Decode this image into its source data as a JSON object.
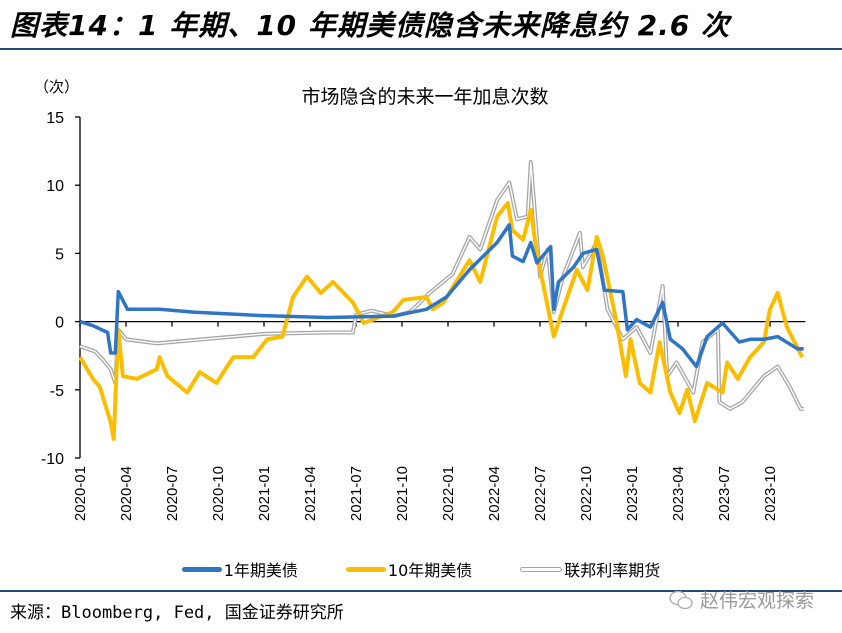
{
  "header": {
    "title": "图表14：1 年期、10 年期美债隐含未来降息约 2.6 次"
  },
  "footer": {
    "source": "来源：Bloomberg, Fed, 国金证券研究所",
    "watermark": "赵伟宏观探索"
  },
  "colors": {
    "rule": "#1f4e79",
    "blue": "#2e75c5",
    "yellow": "#fbbd00",
    "gray": "#a6a6a6"
  },
  "chart_data": {
    "type": "line",
    "title": "市场隐含的未来一年加息次数",
    "ylabel": "（次）",
    "xlabel": "",
    "ylim": [
      -10,
      15
    ],
    "yticks": [
      "15",
      "10",
      "5",
      "0",
      "-5",
      "-10"
    ],
    "ytick_values": [
      15,
      10,
      5,
      0,
      -5,
      -10
    ],
    "x_unit": "months since 2020-01",
    "xticks": [
      "2020-01",
      "2020-04",
      "2020-07",
      "2020-10",
      "2021-01",
      "2021-04",
      "2021-07",
      "2021-10",
      "2022-01",
      "2022-04",
      "2022-07",
      "2022-10",
      "2023-01",
      "2023-04",
      "2023-07",
      "2023-10"
    ],
    "legend_position": "bottom",
    "series": [
      {
        "name": "1年期美债",
        "color": "#2e75c5",
        "x": [
          0,
          0.85,
          1.8,
          2,
          2.3,
          2.5,
          3.1,
          5.2,
          7.4,
          11.7,
          16.1,
          20.4,
          22.6,
          23.9,
          25.4,
          27.2,
          28,
          28.2,
          28.9,
          29.4,
          29.8,
          30.7,
          30.9,
          31.2,
          32.2,
          32.8,
          33.7,
          34.2,
          35.4,
          35.7,
          36.3,
          37.2,
          38,
          38.5,
          39.3,
          40.2,
          40.9,
          41.9,
          43,
          43.7,
          44.6,
          45.5,
          46.8,
          47.2
        ],
        "y": [
          0,
          -0.3,
          -0.8,
          -2.3,
          -2.3,
          2.2,
          0.9,
          0.9,
          0.7,
          0.45,
          0.3,
          0.4,
          0.9,
          1.8,
          3.8,
          5.8,
          7.1,
          4.8,
          4.4,
          5.8,
          4.3,
          5.5,
          0.9,
          2.9,
          4.0,
          5.0,
          5.3,
          2.3,
          2.2,
          -0.6,
          0.15,
          -0.4,
          1.4,
          -1.3,
          -2,
          -3.3,
          -1.1,
          -0.1,
          -1.5,
          -1.3,
          -1.3,
          -1.1,
          -2,
          -2
        ]
      },
      {
        "name": "10年期美债",
        "color": "#fbbd00",
        "x": [
          0,
          0.85,
          1.3,
          2,
          2.2,
          2.5,
          2.8,
          3.7,
          5,
          5.2,
          5.7,
          7,
          7.8,
          8.9,
          10,
          11.3,
          12.2,
          13.2,
          13.9,
          14.8,
          15.7,
          16.5,
          17.8,
          18.5,
          19.1,
          20.4,
          21.1,
          22.6,
          23,
          23.7,
          25.4,
          26.1,
          27.2,
          27.9,
          28.2,
          28.9,
          29.4,
          29.8,
          30.9,
          31.5,
          32.4,
          33.1,
          33.7,
          34.1,
          35,
          35.6,
          35.9,
          36.5,
          37.2,
          37.8,
          38.5,
          39.1,
          39.6,
          40.1,
          40.9,
          41.9,
          42.2,
          42.9,
          43.7,
          44.6,
          45,
          45.5,
          46.1,
          47.1
        ],
        "y": [
          -2.6,
          -4.2,
          -4.8,
          -7.4,
          -8.6,
          -0.6,
          -4,
          -4.2,
          -3.5,
          -2.6,
          -4,
          -5.2,
          -3.7,
          -4.5,
          -2.6,
          -2.6,
          -1.3,
          -1.1,
          1.8,
          3.3,
          2.1,
          2.9,
          1.4,
          -0.1,
          0.15,
          0.7,
          1.6,
          1.8,
          0.9,
          1.4,
          4.5,
          2.9,
          7.7,
          8.7,
          6.7,
          6,
          8.2,
          5,
          -1.1,
          0.9,
          3.8,
          2.3,
          6.2,
          4.8,
          -0.1,
          -4,
          -1.3,
          -4.5,
          -5.2,
          -1.5,
          -5.2,
          -6.7,
          -5,
          -7.3,
          -4.5,
          -5.2,
          -3,
          -4.2,
          -2.6,
          -1.5,
          0.9,
          2.1,
          -0.4,
          -2.6
        ]
      },
      {
        "name": "联邦利率期货",
        "color": "#a6a6a6",
        "x": [
          0,
          1,
          1.5,
          2,
          2.3,
          2.5,
          3,
          5,
          8,
          12,
          16,
          17.8,
          18,
          19,
          20.5,
          21.5,
          22,
          22.8,
          24.3,
          25.4,
          26.1,
          27.2,
          28,
          28.5,
          29.2,
          29.4,
          30,
          30.5,
          30.9,
          31.5,
          32.6,
          32.8,
          33.7,
          34.4,
          35.4,
          36.3,
          37.2,
          38,
          38.3,
          38.9,
          40,
          40.6,
          41.6,
          41.7,
          42.4,
          43.2,
          44.6,
          45.5,
          46.3,
          47,
          47.2
        ],
        "y": [
          -1.8,
          -2.2,
          -2.8,
          -3.5,
          -4.5,
          -0.6,
          -1.3,
          -1.6,
          -1.3,
          -0.9,
          -0.8,
          -0.8,
          0.5,
          0.8,
          0.4,
          0.7,
          1.2,
          2.1,
          3.5,
          6.2,
          5.3,
          8.9,
          10.2,
          7.5,
          7.7,
          11.7,
          3.3,
          5.3,
          0.7,
          3.3,
          6.5,
          4,
          5.8,
          0.9,
          -1.3,
          -0.4,
          -2.3,
          2.6,
          -4,
          -3,
          -5.2,
          -1.5,
          -0.6,
          -5.9,
          -6.4,
          -5.9,
          -4,
          -3.3,
          -4.8,
          -6.4,
          -6.4
        ]
      }
    ]
  }
}
